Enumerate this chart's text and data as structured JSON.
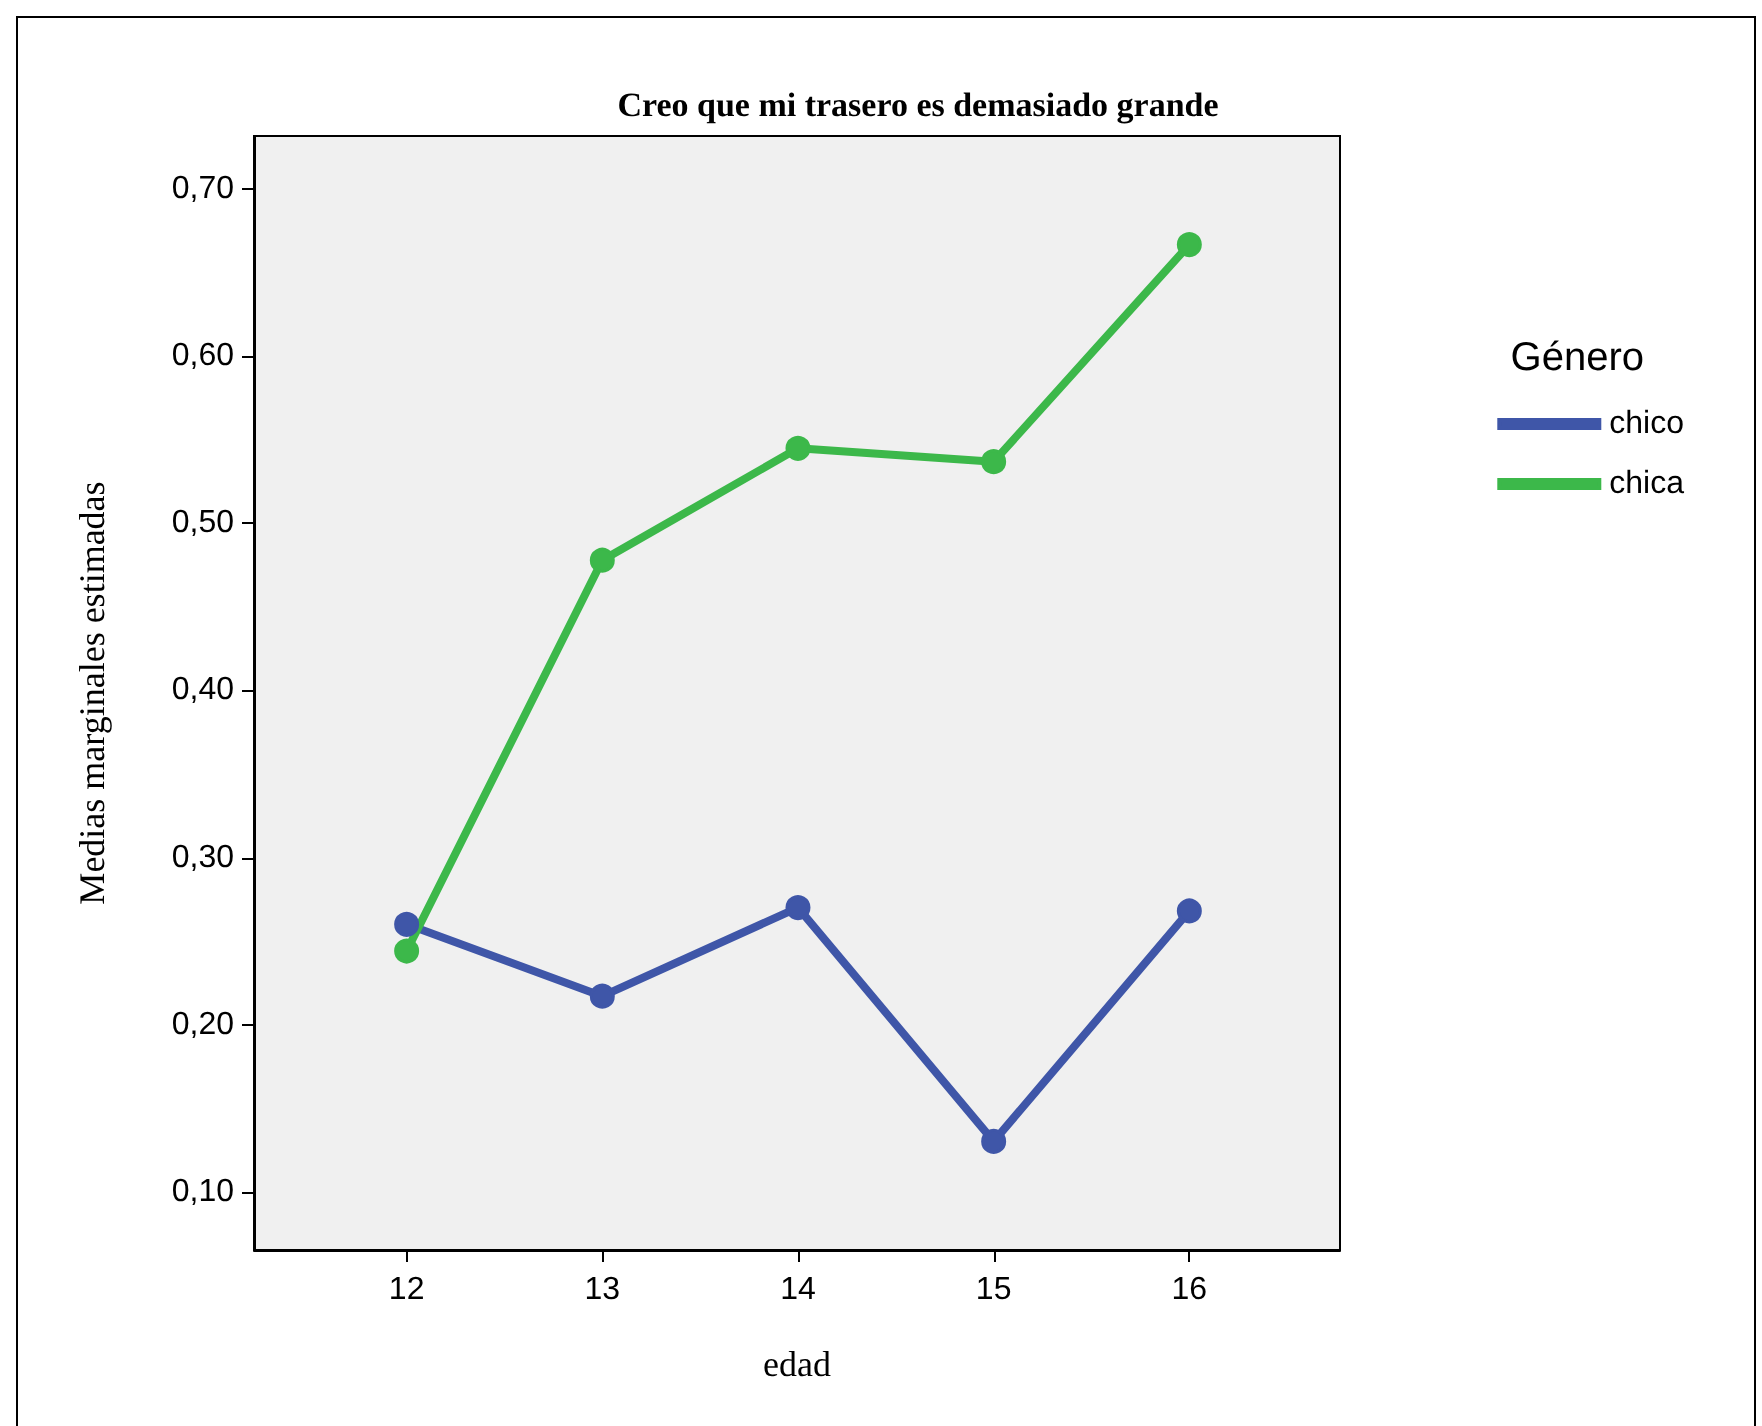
{
  "chart_data": {
    "type": "line",
    "title": "Creo que mi trasero es demasiado grande",
    "xlabel": "edad",
    "ylabel": "Medias marginales estimadas",
    "legend_title": "Género",
    "x": [
      12,
      13,
      14,
      15,
      16
    ],
    "series": [
      {
        "name": "chico",
        "color": "#3f56a8",
        "values": [
          0.26,
          0.217,
          0.27,
          0.13,
          0.268
        ]
      },
      {
        "name": "chica",
        "color": "#3cb84a",
        "values": [
          0.244,
          0.478,
          0.545,
          0.537,
          0.667
        ]
      }
    ],
    "xlim": [
      11.22,
      16.77
    ],
    "xticks": [
      12,
      13,
      14,
      15,
      16
    ],
    "ylim": [
      0.065,
      0.732
    ],
    "yticks": [
      {
        "value": 0.1,
        "label": "0,10"
      },
      {
        "value": 0.2,
        "label": "0,20"
      },
      {
        "value": 0.3,
        "label": "0,30"
      },
      {
        "value": 0.4,
        "label": "0,40"
      },
      {
        "value": 0.5,
        "label": "0,50"
      },
      {
        "value": 0.6,
        "label": "0,60"
      },
      {
        "value": 0.7,
        "label": "0,70"
      }
    ],
    "grid": false,
    "legend": "right",
    "marker": "circle",
    "line_style": "solid"
  }
}
